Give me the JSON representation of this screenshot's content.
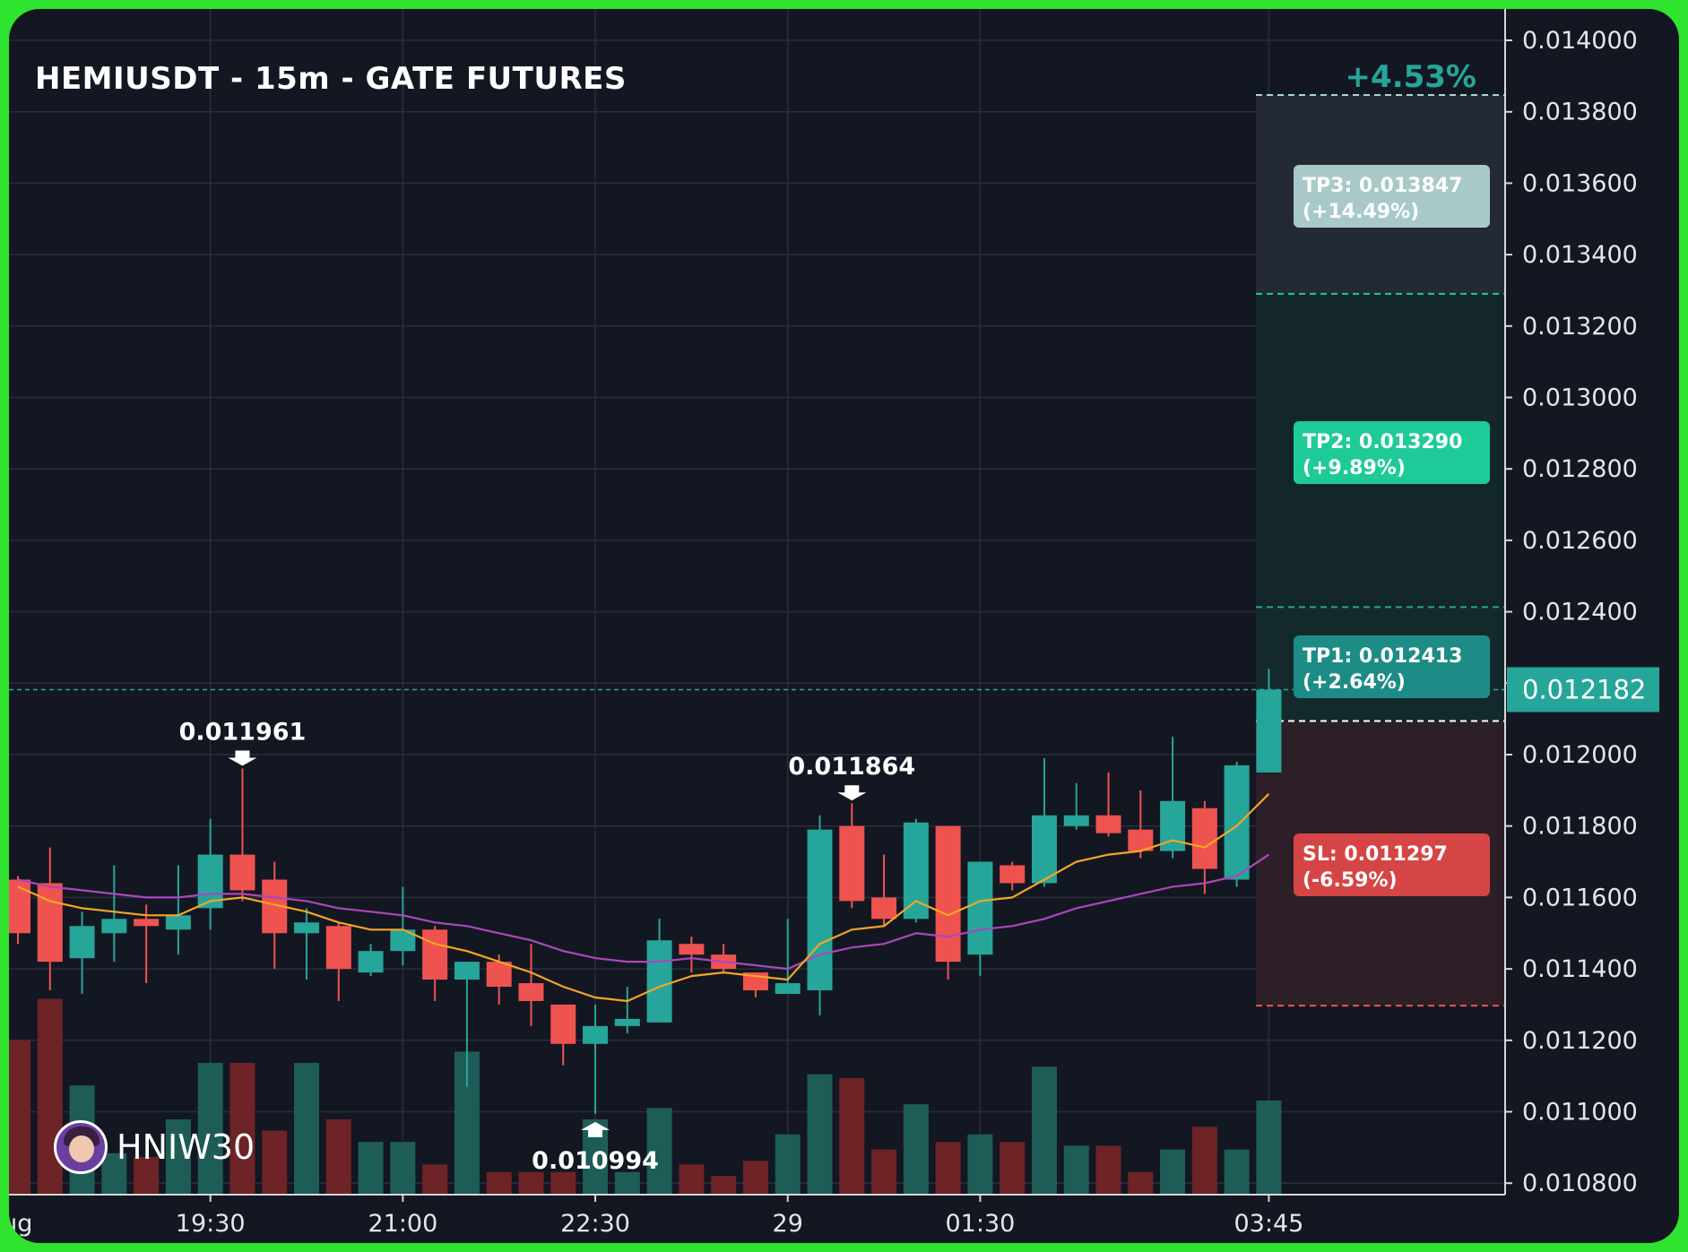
{
  "chart_title": "HEMIUSDT - 15m - GATE FUTURES",
  "watermark": {
    "text": "HNIW30",
    "icon": "avatar-icon"
  },
  "colors": {
    "up": "#26a69a",
    "down": "#ef5350",
    "ema_fast": "#f5a623",
    "ema_slow": "#ab47bc",
    "tp1": "#1e8c86",
    "tp2": "#1ecb98",
    "tp3": "#a9c9c9",
    "sl": "#d64545",
    "price_tag": "#26a69a"
  },
  "chart_data": {
    "type": "candlestick",
    "title": "HEMIUSDT - 15m - GATE FUTURES",
    "ylim": [
      0.01076,
      0.01406
    ],
    "y_ticks": [
      "0.014000",
      "0.013800",
      "0.013600",
      "0.013400",
      "0.013200",
      "0.013000",
      "0.012800",
      "0.012600",
      "0.012400",
      "0.012200",
      "0.012000",
      "0.011800",
      "0.011600",
      "0.011400",
      "0.011200",
      "0.011000",
      "0.010800"
    ],
    "x_ticks": [
      {
        "i": 6,
        "label": "19:30"
      },
      {
        "i": 12,
        "label": "21:00"
      },
      {
        "i": 18,
        "label": "22:30"
      },
      {
        "i": 24,
        "label": "29"
      },
      {
        "i": 30,
        "label": "01:30"
      },
      {
        "i": 39,
        "label": "03:45"
      }
    ],
    "x_edge_label": "Aug",
    "candles": [
      {
        "o": 0.01165,
        "h": 0.01166,
        "l": 0.01147,
        "c": 0.0115
      },
      {
        "o": 0.01164,
        "h": 0.01174,
        "l": 0.01134,
        "c": 0.01142
      },
      {
        "o": 0.01143,
        "h": 0.01156,
        "l": 0.01133,
        "c": 0.01152
      },
      {
        "o": 0.0115,
        "h": 0.01169,
        "l": 0.01142,
        "c": 0.01154
      },
      {
        "o": 0.01154,
        "h": 0.01158,
        "l": 0.01136,
        "c": 0.01152
      },
      {
        "o": 0.01151,
        "h": 0.01169,
        "l": 0.01144,
        "c": 0.01155
      },
      {
        "o": 0.01157,
        "h": 0.01182,
        "l": 0.01151,
        "c": 0.01172
      },
      {
        "o": 0.01172,
        "h": 0.011961,
        "l": 0.01159,
        "c": 0.01162
      },
      {
        "o": 0.01165,
        "h": 0.0117,
        "l": 0.0114,
        "c": 0.0115
      },
      {
        "o": 0.0115,
        "h": 0.01157,
        "l": 0.01137,
        "c": 0.01153
      },
      {
        "o": 0.01152,
        "h": 0.01153,
        "l": 0.01131,
        "c": 0.0114
      },
      {
        "o": 0.01139,
        "h": 0.01147,
        "l": 0.01138,
        "c": 0.01145
      },
      {
        "o": 0.01145,
        "h": 0.01163,
        "l": 0.01141,
        "c": 0.01151
      },
      {
        "o": 0.01151,
        "h": 0.01152,
        "l": 0.01131,
        "c": 0.01137
      },
      {
        "o": 0.01137,
        "h": 0.01142,
        "l": 0.01107,
        "c": 0.01142
      },
      {
        "o": 0.01142,
        "h": 0.01144,
        "l": 0.0113,
        "c": 0.01135
      },
      {
        "o": 0.01136,
        "h": 0.01147,
        "l": 0.01124,
        "c": 0.01131
      },
      {
        "o": 0.0113,
        "h": 0.0113,
        "l": 0.01113,
        "c": 0.01119
      },
      {
        "o": 0.01119,
        "h": 0.0113,
        "l": 0.010994,
        "c": 0.01124
      },
      {
        "o": 0.01124,
        "h": 0.01135,
        "l": 0.01122,
        "c": 0.01126
      },
      {
        "o": 0.01125,
        "h": 0.01154,
        "l": 0.01125,
        "c": 0.01148
      },
      {
        "o": 0.01147,
        "h": 0.01149,
        "l": 0.01139,
        "c": 0.01144
      },
      {
        "o": 0.01144,
        "h": 0.01147,
        "l": 0.01139,
        "c": 0.0114
      },
      {
        "o": 0.01139,
        "h": 0.01139,
        "l": 0.01132,
        "c": 0.01134
      },
      {
        "o": 0.01133,
        "h": 0.01154,
        "l": 0.01133,
        "c": 0.01136
      },
      {
        "o": 0.01134,
        "h": 0.01183,
        "l": 0.01127,
        "c": 0.01179
      },
      {
        "o": 0.0118,
        "h": 0.011864,
        "l": 0.01157,
        "c": 0.01159
      },
      {
        "o": 0.0116,
        "h": 0.01172,
        "l": 0.01152,
        "c": 0.01154
      },
      {
        "o": 0.01154,
        "h": 0.01182,
        "l": 0.01153,
        "c": 0.01181
      },
      {
        "o": 0.0118,
        "h": 0.0118,
        "l": 0.01137,
        "c": 0.01142
      },
      {
        "o": 0.01144,
        "h": 0.0117,
        "l": 0.01138,
        "c": 0.0117
      },
      {
        "o": 0.01169,
        "h": 0.0117,
        "l": 0.01162,
        "c": 0.01164
      },
      {
        "o": 0.01164,
        "h": 0.01199,
        "l": 0.01163,
        "c": 0.01183
      },
      {
        "o": 0.0118,
        "h": 0.01192,
        "l": 0.01179,
        "c": 0.01183
      },
      {
        "o": 0.01183,
        "h": 0.01195,
        "l": 0.01177,
        "c": 0.01178
      },
      {
        "o": 0.01179,
        "h": 0.0119,
        "l": 0.01171,
        "c": 0.01173
      },
      {
        "o": 0.01173,
        "h": 0.01205,
        "l": 0.01171,
        "c": 0.01187
      },
      {
        "o": 0.01185,
        "h": 0.01187,
        "l": 0.01161,
        "c": 0.01168
      },
      {
        "o": 0.01165,
        "h": 0.01198,
        "l": 0.01163,
        "c": 0.01197
      },
      {
        "o": 0.01195,
        "h": 0.01224,
        "l": 0.01195,
        "c": 0.012182
      }
    ],
    "volume_relative": [
      0.41,
      0.52,
      0.29,
      0.11,
      0.1,
      0.2,
      0.35,
      0.35,
      0.17,
      0.35,
      0.2,
      0.14,
      0.14,
      0.08,
      0.38,
      0.06,
      0.06,
      0.06,
      0.2,
      0.06,
      0.23,
      0.08,
      0.05,
      0.09,
      0.16,
      0.32,
      0.31,
      0.12,
      0.24,
      0.14,
      0.16,
      0.14,
      0.34,
      0.13,
      0.13,
      0.06,
      0.12,
      0.18,
      0.12,
      0.25
    ],
    "ema_fast": [
      0.01163,
      0.01159,
      0.01157,
      0.01156,
      0.01155,
      0.01155,
      0.01159,
      0.0116,
      0.01158,
      0.01156,
      0.01153,
      0.01151,
      0.01151,
      0.01147,
      0.01145,
      0.01142,
      0.01139,
      0.01135,
      0.01132,
      0.01131,
      0.01135,
      0.01138,
      0.01139,
      0.01138,
      0.01137,
      0.01147,
      0.01151,
      0.01152,
      0.01159,
      0.01155,
      0.01159,
      0.0116,
      0.01165,
      0.0117,
      0.01172,
      0.01173,
      0.01176,
      0.01174,
      0.0118,
      0.01189
    ],
    "ema_slow": [
      0.01165,
      0.01163,
      0.01162,
      0.01161,
      0.0116,
      0.0116,
      0.01161,
      0.01161,
      0.0116,
      0.01159,
      0.01157,
      0.01156,
      0.01155,
      0.01153,
      0.01152,
      0.0115,
      0.01148,
      0.01145,
      0.01143,
      0.01142,
      0.01142,
      0.01143,
      0.01142,
      0.01141,
      0.0114,
      0.01144,
      0.01146,
      0.01147,
      0.0115,
      0.01149,
      0.01151,
      0.01152,
      0.01154,
      0.01157,
      0.01159,
      0.01161,
      0.01163,
      0.01164,
      0.01166,
      0.01172
    ],
    "last_price": {
      "value": 0.012182,
      "label": "0.012182"
    },
    "extreme_labels": [
      {
        "i": 7,
        "kind": "high",
        "label": "0.011961"
      },
      {
        "i": 26,
        "kind": "high",
        "label": "0.011864"
      },
      {
        "i": 18,
        "kind": "low",
        "label": "0.010994"
      }
    ],
    "trade_box": {
      "entry": 0.012094,
      "tp1": {
        "price": 0.012413,
        "label1": "TP1: 0.012413",
        "label2": "(+2.64%)"
      },
      "tp2": {
        "price": 0.01329,
        "label1": "TP2: 0.013290",
        "label2": "(+9.89%)"
      },
      "tp3": {
        "price": 0.013847,
        "label1": "TP3: 0.013847",
        "label2": "(+14.49%)"
      },
      "sl": {
        "price": 0.011297,
        "label1": "SL: 0.011297",
        "label2": "(-6.59%)"
      },
      "change_label": "+4.53%"
    }
  }
}
